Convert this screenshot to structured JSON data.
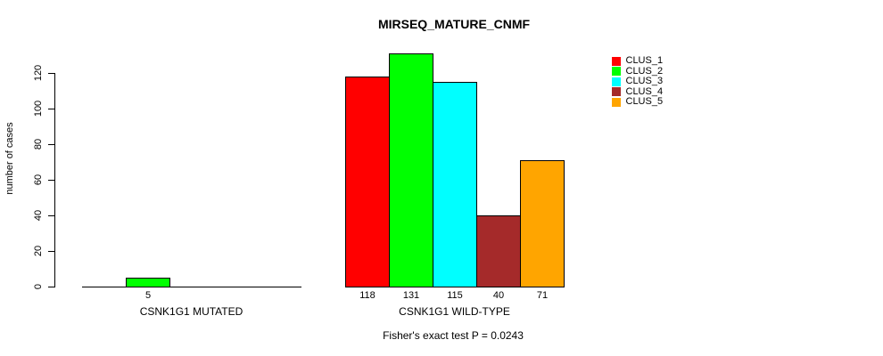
{
  "chart_data": {
    "type": "bar",
    "title": "MIRSEQ_MATURE_CNMF",
    "ylabel": "number of cases",
    "footnote": "Fisher's exact test P = 0.0243",
    "yticks": [
      0,
      20,
      40,
      60,
      80,
      100,
      120
    ],
    "ylim": [
      0,
      131
    ],
    "grid": false,
    "legend": {
      "position": "top-right",
      "entries": [
        {
          "label": "CLUS_1",
          "color": "#FF0000"
        },
        {
          "label": "CLUS_2",
          "color": "#00FF00"
        },
        {
          "label": "CLUS_3",
          "color": "#00FFFF"
        },
        {
          "label": "CLUS_4",
          "color": "#A52A2A"
        },
        {
          "label": "CLUS_5",
          "color": "#FFA500"
        }
      ]
    },
    "groups": [
      {
        "label": "CSNK1G1 MUTATED",
        "values": [
          0,
          5,
          0,
          0,
          0
        ]
      },
      {
        "label": "CSNK1G1 WILD-TYPE",
        "values": [
          118,
          131,
          115,
          40,
          71
        ]
      }
    ],
    "axis_color": "#000000",
    "bar_border_color": "#000000",
    "background_color": "#FFFFFF"
  }
}
